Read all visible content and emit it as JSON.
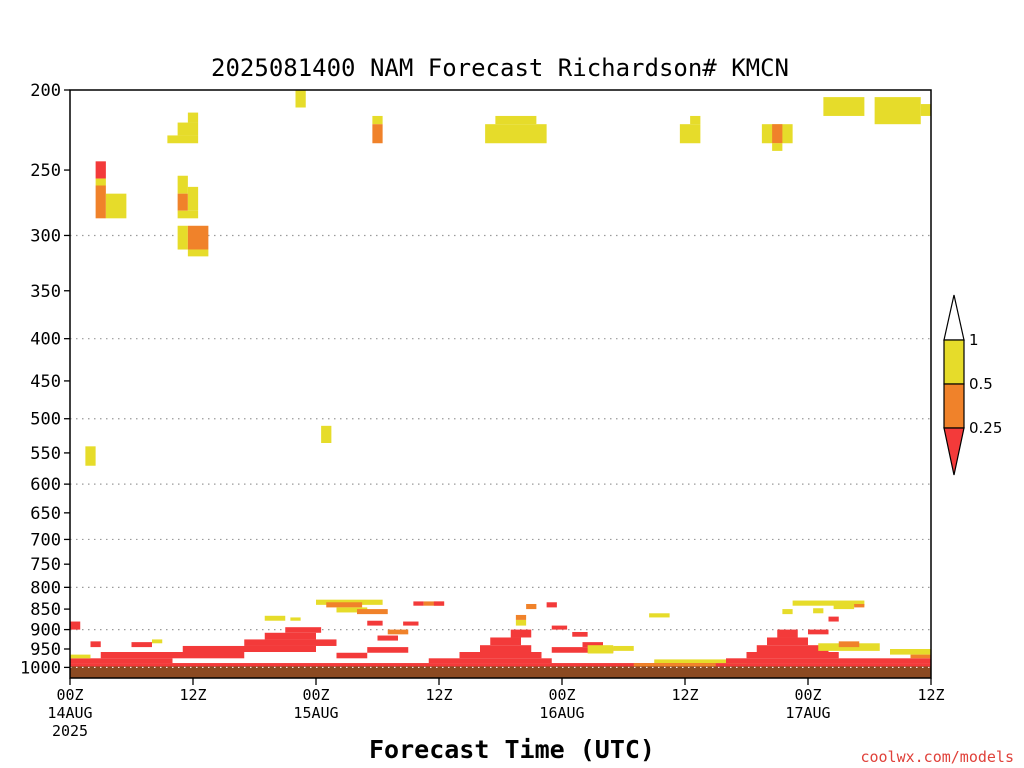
{
  "page": {
    "credit": "coolwx.com/models"
  },
  "chart_data": {
    "type": "heatmap",
    "title": "2025081400 NAM Forecast Richardson# KMCN",
    "xlabel": "Forecast Time (UTC)",
    "ylabel": "",
    "x_unit": "hours from 2025-08-14 00Z",
    "xlim": [
      0,
      84
    ],
    "y_unit": "pressure (hPa)",
    "y_scale": "log",
    "ylim": [
      1030,
      200
    ],
    "grid": true,
    "x_ticks": [
      {
        "x": 0,
        "lines": [
          "00Z",
          "14AUG",
          "2025"
        ]
      },
      {
        "x": 12,
        "lines": [
          "12Z"
        ]
      },
      {
        "x": 24,
        "lines": [
          "00Z",
          "15AUG"
        ]
      },
      {
        "x": 36,
        "lines": [
          "12Z"
        ]
      },
      {
        "x": 48,
        "lines": [
          "00Z",
          "16AUG"
        ]
      },
      {
        "x": 60,
        "lines": [
          "12Z"
        ]
      },
      {
        "x": 72,
        "lines": [
          "00Z",
          "17AUG"
        ]
      },
      {
        "x": 84,
        "lines": [
          "12Z"
        ]
      }
    ],
    "y_ticks": [
      200,
      250,
      300,
      350,
      400,
      450,
      500,
      550,
      600,
      650,
      700,
      750,
      800,
      850,
      900,
      950,
      1000
    ],
    "y_gridlines": [
      300,
      400,
      500,
      600,
      700,
      800,
      900,
      1000
    ],
    "terrain": {
      "color": "#8b4a22",
      "surface_hpa": 1000
    },
    "colorbar": {
      "levels": [
        {
          "label": "1",
          "level": 1
        },
        {
          "label": "0.5",
          "level": 0.5
        },
        {
          "label": "0.25",
          "level": 0.25
        }
      ],
      "bins": [
        {
          "range": "> 1",
          "color": "#ffffff"
        },
        {
          "range": "0.5 - 1",
          "color": "#e6dc2a"
        },
        {
          "range": "0.25 - 0.5",
          "color": "#f0822a"
        },
        {
          "range": "< 0.25",
          "color": "#f33a3a"
        }
      ]
    },
    "cells": [
      {
        "x0": 22,
        "x1": 23,
        "p0": 210,
        "p1": 200,
        "c": "y"
      },
      {
        "x0": 73.5,
        "x1": 77.5,
        "p0": 215,
        "p1": 204,
        "c": "y"
      },
      {
        "x0": 78.5,
        "x1": 83,
        "p0": 220,
        "p1": 204,
        "c": "y"
      },
      {
        "x0": 83,
        "x1": 84,
        "p0": 215,
        "p1": 208,
        "c": "y"
      },
      {
        "x0": 9.5,
        "x1": 12.5,
        "p0": 232,
        "p1": 227,
        "c": "y"
      },
      {
        "x0": 10.5,
        "x1": 12.5,
        "p0": 227,
        "p1": 219,
        "c": "y"
      },
      {
        "x0": 11.5,
        "x1": 12.5,
        "p0": 219,
        "p1": 213,
        "c": "y"
      },
      {
        "x0": 29.5,
        "x1": 30.5,
        "p0": 220,
        "p1": 215,
        "c": "y"
      },
      {
        "x0": 29.5,
        "x1": 30.5,
        "p0": 232,
        "p1": 220,
        "c": "o"
      },
      {
        "x0": 40.5,
        "x1": 46.5,
        "p0": 232,
        "p1": 220,
        "c": "y"
      },
      {
        "x0": 41.5,
        "x1": 45.5,
        "p0": 220,
        "p1": 215,
        "c": "y"
      },
      {
        "x0": 59.5,
        "x1": 61.5,
        "p0": 232,
        "p1": 220,
        "c": "y"
      },
      {
        "x0": 60.5,
        "x1": 61.5,
        "p0": 220,
        "p1": 215,
        "c": "y"
      },
      {
        "x0": 67.5,
        "x1": 70.5,
        "p0": 232,
        "p1": 220,
        "c": "y"
      },
      {
        "x0": 68.5,
        "x1": 69.5,
        "p0": 228,
        "p1": 220,
        "c": "o"
      },
      {
        "x0": 68.5,
        "x1": 69.5,
        "p0": 232,
        "p1": 228,
        "c": "o"
      },
      {
        "x0": 68.5,
        "x1": 69.5,
        "p0": 237,
        "p1": 232,
        "c": "y"
      },
      {
        "x0": 2.5,
        "x1": 3.5,
        "p0": 256,
        "p1": 244,
        "c": "r"
      },
      {
        "x0": 2.5,
        "x1": 3.5,
        "p0": 261,
        "p1": 256,
        "c": "y"
      },
      {
        "x0": 2.5,
        "x1": 3.5,
        "p0": 286,
        "p1": 261,
        "c": "o"
      },
      {
        "x0": 3.5,
        "x1": 5.5,
        "p0": 286,
        "p1": 267,
        "c": "y"
      },
      {
        "x0": 10.5,
        "x1": 11.5,
        "p0": 267,
        "p1": 254,
        "c": "y"
      },
      {
        "x0": 10.5,
        "x1": 11.5,
        "p0": 280,
        "p1": 267,
        "c": "o"
      },
      {
        "x0": 11.5,
        "x1": 12.5,
        "p0": 280,
        "p1": 262,
        "c": "y"
      },
      {
        "x0": 10.5,
        "x1": 12.5,
        "p0": 286,
        "p1": 280,
        "c": "y"
      },
      {
        "x0": 10.5,
        "x1": 11.5,
        "p0": 312,
        "p1": 292,
        "c": "y"
      },
      {
        "x0": 11.5,
        "x1": 13.5,
        "p0": 312,
        "p1": 292,
        "c": "o"
      },
      {
        "x0": 11.5,
        "x1": 13.5,
        "p0": 318,
        "p1": 312,
        "c": "y"
      },
      {
        "x0": 1.5,
        "x1": 2.5,
        "p0": 570,
        "p1": 540,
        "c": "y"
      },
      {
        "x0": 24.5,
        "x1": 25.5,
        "p0": 535,
        "p1": 510,
        "c": "y"
      },
      {
        "x0": 24,
        "x1": 30.5,
        "p0": 840,
        "p1": 828,
        "c": "y"
      },
      {
        "x0": 25,
        "x1": 28.5,
        "p0": 846,
        "p1": 834,
        "c": "o"
      },
      {
        "x0": 26,
        "x1": 29,
        "p0": 858,
        "p1": 846,
        "c": "y"
      },
      {
        "x0": 28,
        "x1": 31,
        "p0": 862,
        "p1": 850,
        "c": "o"
      },
      {
        "x0": 33.5,
        "x1": 34.5,
        "p0": 842,
        "p1": 832,
        "c": "r"
      },
      {
        "x0": 34.5,
        "x1": 36.5,
        "p0": 842,
        "p1": 832,
        "c": "o"
      },
      {
        "x0": 35.5,
        "x1": 36.5,
        "p0": 842,
        "p1": 832,
        "c": "r"
      },
      {
        "x0": 19,
        "x1": 21,
        "p0": 878,
        "p1": 866,
        "c": "y"
      },
      {
        "x0": 21.5,
        "x1": 22.5,
        "p0": 878,
        "p1": 870,
        "c": "y"
      },
      {
        "x0": 56.5,
        "x1": 58.5,
        "p0": 870,
        "p1": 860,
        "c": "y"
      },
      {
        "x0": 69.5,
        "x1": 70.5,
        "p0": 862,
        "p1": 850,
        "c": "y"
      },
      {
        "x0": 70.5,
        "x1": 77.5,
        "p0": 842,
        "p1": 830,
        "c": "y"
      },
      {
        "x0": 72.5,
        "x1": 73.5,
        "p0": 860,
        "p1": 848,
        "c": "y"
      },
      {
        "x0": 74.5,
        "x1": 76.5,
        "p0": 850,
        "p1": 838,
        "c": "y"
      },
      {
        "x0": 76.5,
        "x1": 77.5,
        "p0": 846,
        "p1": 838,
        "c": "o"
      },
      {
        "x0": 43.5,
        "x1": 44.5,
        "p0": 890,
        "p1": 876,
        "c": "y"
      },
      {
        "x0": 43.5,
        "x1": 44.5,
        "p0": 876,
        "p1": 864,
        "c": "o"
      },
      {
        "x0": 44.5,
        "x1": 45.5,
        "p0": 850,
        "p1": 838,
        "c": "o"
      },
      {
        "x0": 46.5,
        "x1": 47.5,
        "p0": 846,
        "p1": 834,
        "c": "r"
      },
      {
        "x0": 0,
        "x1": 84,
        "p0": 1000,
        "p1": 988,
        "c": "r"
      },
      {
        "x0": 0,
        "x1": 10,
        "p0": 988,
        "p1": 975,
        "c": "r"
      },
      {
        "x0": 3,
        "x1": 17,
        "p0": 975,
        "p1": 958,
        "c": "r"
      },
      {
        "x0": 11,
        "x1": 24,
        "p0": 958,
        "p1": 942,
        "c": "r"
      },
      {
        "x0": 17,
        "x1": 26,
        "p0": 942,
        "p1": 925,
        "c": "r"
      },
      {
        "x0": 19,
        "x1": 24,
        "p0": 925,
        "p1": 908,
        "c": "r"
      },
      {
        "x0": 21,
        "x1": 24.5,
        "p0": 908,
        "p1": 894,
        "c": "r"
      },
      {
        "x0": 26,
        "x1": 29,
        "p0": 975,
        "p1": 960,
        "c": "r"
      },
      {
        "x0": 29,
        "x1": 33,
        "p0": 960,
        "p1": 945,
        "c": "r"
      },
      {
        "x0": 30,
        "x1": 32,
        "p0": 928,
        "p1": 915,
        "c": "r"
      },
      {
        "x0": 31,
        "x1": 33,
        "p0": 912,
        "p1": 900,
        "c": "o"
      },
      {
        "x0": 29,
        "x1": 30.5,
        "p0": 890,
        "p1": 878,
        "c": "r"
      },
      {
        "x0": 32.5,
        "x1": 34,
        "p0": 890,
        "p1": 880,
        "c": "r"
      },
      {
        "x0": 35,
        "x1": 47,
        "p0": 988,
        "p1": 975,
        "c": "r"
      },
      {
        "x0": 38,
        "x1": 46,
        "p0": 975,
        "p1": 958,
        "c": "r"
      },
      {
        "x0": 40,
        "x1": 45,
        "p0": 958,
        "p1": 940,
        "c": "r"
      },
      {
        "x0": 41,
        "x1": 44,
        "p0": 940,
        "p1": 920,
        "c": "r"
      },
      {
        "x0": 43,
        "x1": 45,
        "p0": 920,
        "p1": 900,
        "c": "r"
      },
      {
        "x0": 47,
        "x1": 53,
        "p0": 960,
        "p1": 945,
        "c": "r"
      },
      {
        "x0": 50,
        "x1": 52,
        "p0": 945,
        "p1": 932,
        "c": "r"
      },
      {
        "x0": 50.5,
        "x1": 53,
        "p0": 962,
        "p1": 940,
        "c": "y"
      },
      {
        "x0": 53,
        "x1": 55,
        "p0": 955,
        "p1": 942,
        "c": "y"
      },
      {
        "x0": 49,
        "x1": 50.5,
        "p0": 918,
        "p1": 906,
        "c": "r"
      },
      {
        "x0": 47,
        "x1": 48.5,
        "p0": 900,
        "p1": 890,
        "c": "r"
      },
      {
        "x0": 57,
        "x1": 66,
        "p0": 988,
        "p1": 978,
        "c": "y"
      },
      {
        "x0": 55,
        "x1": 63,
        "p0": 1000,
        "p1": 988,
        "c": "o"
      },
      {
        "x0": 64,
        "x1": 84,
        "p0": 988,
        "p1": 975,
        "c": "r"
      },
      {
        "x0": 66,
        "x1": 75,
        "p0": 975,
        "p1": 958,
        "c": "r"
      },
      {
        "x0": 67,
        "x1": 74,
        "p0": 958,
        "p1": 940,
        "c": "r"
      },
      {
        "x0": 68,
        "x1": 72,
        "p0": 940,
        "p1": 920,
        "c": "r"
      },
      {
        "x0": 69,
        "x1": 71,
        "p0": 920,
        "p1": 900,
        "c": "r"
      },
      {
        "x0": 73,
        "x1": 79,
        "p0": 955,
        "p1": 935,
        "c": "y"
      },
      {
        "x0": 75,
        "x1": 77,
        "p0": 945,
        "p1": 930,
        "c": "o"
      },
      {
        "x0": 72,
        "x1": 74,
        "p0": 912,
        "p1": 900,
        "c": "r"
      },
      {
        "x0": 74,
        "x1": 75,
        "p0": 880,
        "p1": 868,
        "c": "r"
      },
      {
        "x0": 80,
        "x1": 84,
        "p0": 965,
        "p1": 950,
        "c": "y"
      },
      {
        "x0": 82,
        "x1": 84,
        "p0": 975,
        "p1": 965,
        "c": "o"
      },
      {
        "x0": 0,
        "x1": 2,
        "p0": 975,
        "p1": 965,
        "c": "y"
      },
      {
        "x0": 0,
        "x1": 1,
        "p0": 900,
        "p1": 880,
        "c": "r"
      },
      {
        "x0": 2,
        "x1": 3,
        "p0": 945,
        "p1": 930,
        "c": "r"
      },
      {
        "x0": 6,
        "x1": 8,
        "p0": 945,
        "p1": 932,
        "c": "r"
      },
      {
        "x0": 8,
        "x1": 9,
        "p0": 935,
        "p1": 925,
        "c": "y"
      }
    ]
  }
}
